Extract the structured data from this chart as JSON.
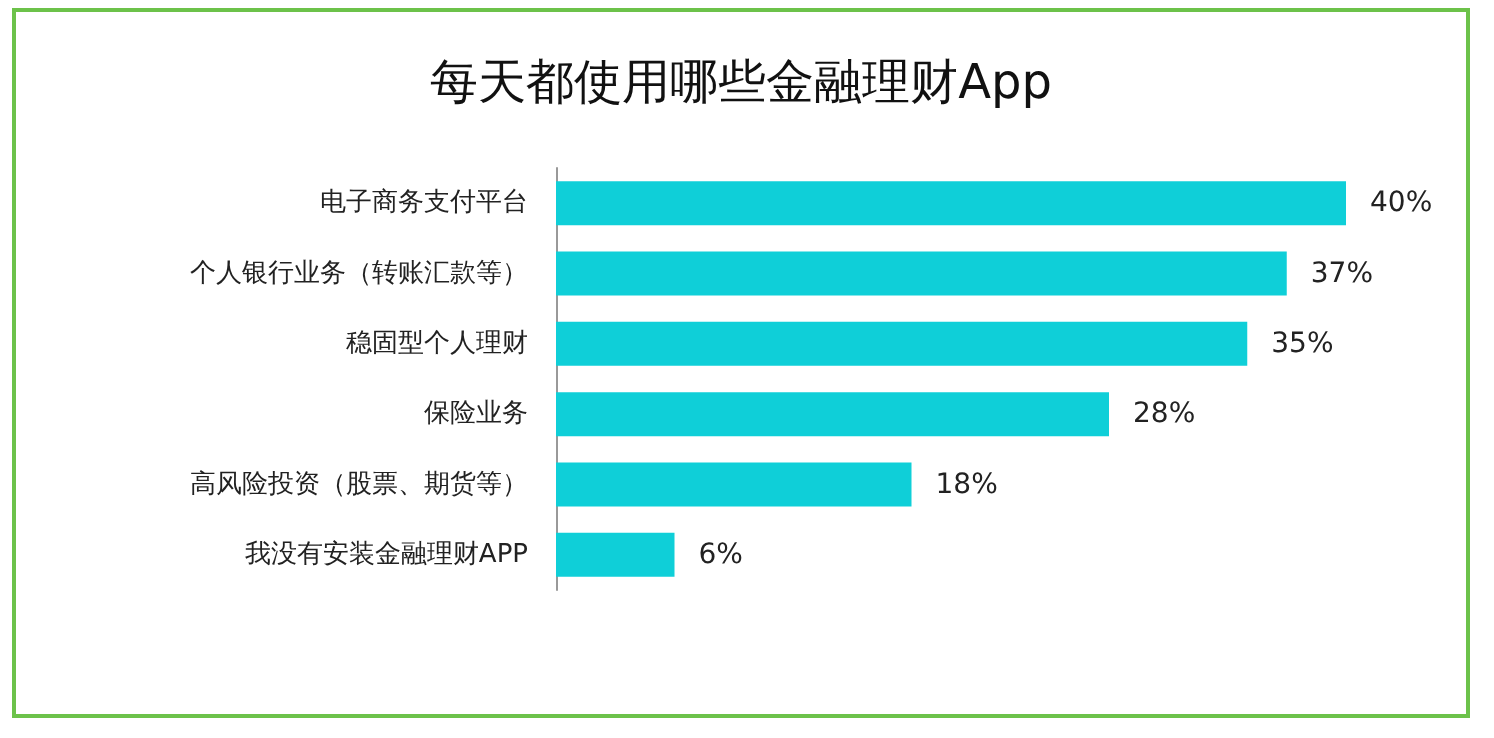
{
  "chart_data": {
    "type": "bar",
    "orientation": "horizontal",
    "title": "每天都使用哪些金融理财App",
    "categories": [
      "电子商务支付平台",
      "个人银行业务（转账汇款等）",
      "稳固型个人理财",
      "保险业务",
      "高风险投资（股票、期货等）",
      "我没有安装金融理财APP"
    ],
    "values": [
      40,
      37,
      35,
      28,
      18,
      6
    ],
    "value_labels": [
      "40%",
      "37%",
      "35%",
      "28%",
      "18%",
      "6%"
    ],
    "color": "#0fcfd8",
    "grid": false
  }
}
